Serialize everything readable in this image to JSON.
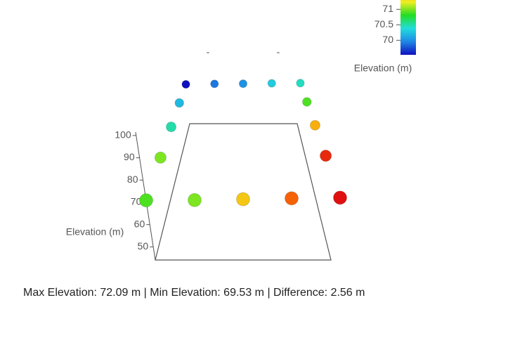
{
  "chart_data": {
    "type": "scatter3d",
    "z_title": "Elevation (m)",
    "x": [
      0,
      1,
      2,
      3,
      4,
      4,
      4,
      4,
      4,
      3,
      2,
      1,
      0,
      0,
      0,
      0
    ],
    "y": [
      4,
      4,
      4,
      4,
      4,
      3,
      2,
      1,
      0,
      0,
      0,
      0,
      0,
      1,
      2,
      3
    ],
    "z": [
      69.53,
      69.9,
      70.0,
      70.3,
      70.45,
      70.9,
      71.5,
      72.0,
      72.09,
      71.8,
      71.4,
      71.0,
      70.9,
      71.0,
      70.5,
      70.2
    ],
    "zlim": [
      42,
      100
    ],
    "zticks": [
      50,
      60,
      70,
      80,
      90,
      100
    ],
    "top_tick_labels": [
      "-",
      "-"
    ],
    "colorbar": {
      "title": "Elevation (m)",
      "clim": [
        69.53,
        72.09
      ],
      "ticks": [
        70,
        70.5,
        71
      ],
      "colorscale": [
        "#1010c0",
        "#1e88e5",
        "#22dddd",
        "#22dd22",
        "#eeee22",
        "#ff8800",
        "#e01010"
      ]
    }
  },
  "footer": "Max Elevation: 72.09 m | Min Elevation: 69.53 m | Difference: 2.56 m"
}
